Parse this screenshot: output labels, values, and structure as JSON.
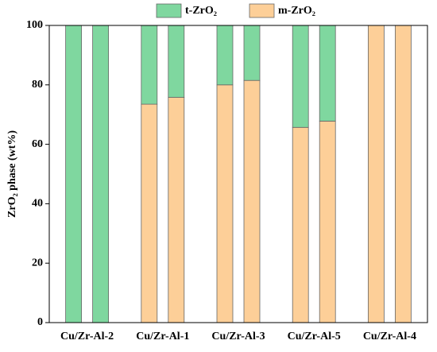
{
  "chart_data": {
    "type": "bar",
    "stacked": true,
    "categories": [
      "Cu/Zr-Al-2",
      "Cu/Zr-Al-1",
      "Cu/Zr-Al-3",
      "Cu/Zr-Al-5",
      "Cu/Zr-Al-4"
    ],
    "ylabel": "ZrO₂ phase (wt%)",
    "series": [
      {
        "name": "m-ZrO₂",
        "color": "#fdcf98",
        "values": [
          [
            0,
            0
          ],
          [
            73.5,
            75.8
          ],
          [
            80,
            81.5
          ],
          [
            65.7,
            67.8
          ],
          [
            100,
            100
          ]
        ]
      },
      {
        "name": "t-ZrO₂",
        "color": "#7fd79f",
        "values": [
          [
            100,
            100
          ],
          [
            26.5,
            24.2
          ],
          [
            20,
            18.5
          ],
          [
            34.3,
            32.2
          ],
          [
            0,
            0
          ]
        ]
      }
    ],
    "legend_order": [
      1,
      0
    ],
    "ylim": [
      0,
      100
    ],
    "yticks": [
      0,
      20,
      40,
      60,
      80,
      100
    ]
  }
}
